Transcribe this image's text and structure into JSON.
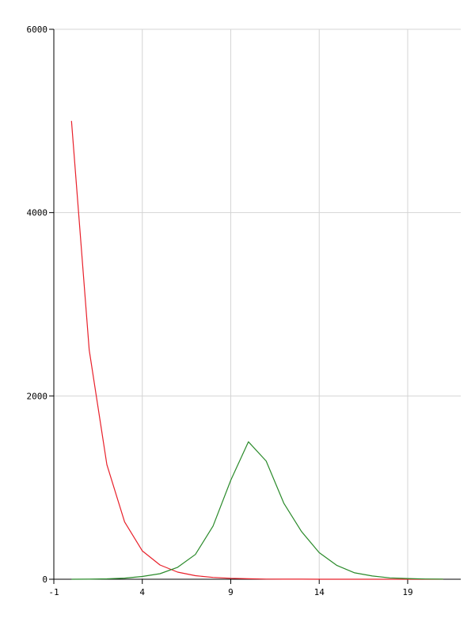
{
  "chart_data": {
    "type": "line",
    "title": "",
    "xlabel": "",
    "ylabel": "",
    "xlim": [
      -1,
      22
    ],
    "ylim": [
      0,
      6000
    ],
    "x_ticks": [
      -1,
      4,
      9,
      14,
      19
    ],
    "x_tick_labels": [
      "-1",
      "4",
      "9",
      "14",
      "19"
    ],
    "y_ticks": [
      0,
      2000,
      4000,
      6000
    ],
    "y_tick_labels": [
      "0",
      "2000",
      "4000",
      "6000"
    ],
    "grid": true,
    "legend": false,
    "series": [
      {
        "color": "#e8202a",
        "x": [
          0,
          1,
          2,
          3,
          4,
          5,
          6,
          7,
          8,
          9,
          10,
          11,
          12,
          13,
          14,
          15,
          16,
          17,
          18,
          19,
          20,
          21
        ],
        "y": [
          5000,
          2500,
          1250,
          625,
          310,
          155,
          78,
          39,
          20,
          10,
          5,
          2,
          1,
          1,
          0,
          0,
          0,
          0,
          0,
          0,
          0,
          0
        ]
      },
      {
        "color": "#2a8a2a",
        "x": [
          0,
          1,
          2,
          3,
          4,
          5,
          6,
          7,
          8,
          9,
          10,
          11,
          12,
          13,
          14,
          15,
          16,
          17,
          18,
          19,
          20,
          21
        ],
        "y": [
          0,
          1,
          4,
          12,
          30,
          60,
          130,
          270,
          580,
          1080,
          1500,
          1290,
          830,
          520,
          290,
          150,
          70,
          35,
          15,
          8,
          3,
          1
        ]
      }
    ]
  }
}
